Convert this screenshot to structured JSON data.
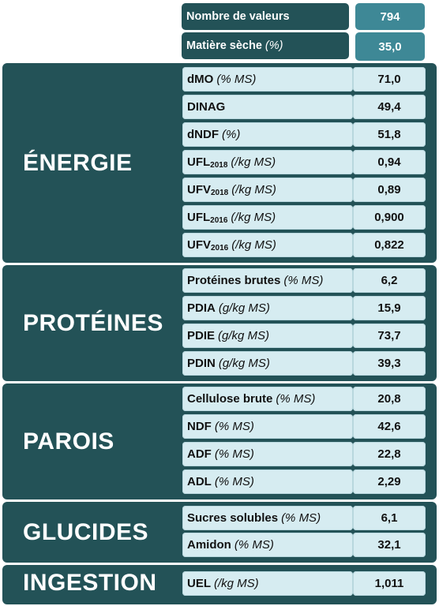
{
  "header": {
    "count_label": "Nombre de valeurs",
    "count_value": "794",
    "dm_label": "Matière sèche",
    "dm_unit": "(%)",
    "dm_value": "35,0"
  },
  "sections": [
    {
      "title": "ÉNERGIE",
      "rows": [
        {
          "label": "dMO",
          "sub": "",
          "unit": "(% MS)",
          "value": "71,0"
        },
        {
          "label": "DINAG",
          "sub": "",
          "unit": "",
          "value": "49,4"
        },
        {
          "label": "dNDF",
          "sub": "",
          "unit": "(%)",
          "value": "51,8"
        },
        {
          "label": "UFL",
          "sub": "2018",
          "unit": "(/kg MS)",
          "value": "0,94"
        },
        {
          "label": "UFV",
          "sub": "2018",
          "unit": " (/kg MS)",
          "value": "0,89"
        },
        {
          "label": "UFL",
          "sub": "2016",
          "unit": "(/kg MS)",
          "value": "0,900"
        },
        {
          "label": "UFV",
          "sub": "2016",
          "unit": "(/kg MS)",
          "value": "0,822"
        }
      ]
    },
    {
      "title": "PROTÉINES",
      "rows": [
        {
          "label": "Protéines brutes",
          "sub": "",
          "unit": "(% MS)",
          "value": "6,2"
        },
        {
          "label": "PDIA",
          "sub": "",
          "unit": "(g/kg MS)",
          "value": "15,9"
        },
        {
          "label": "PDIE",
          "sub": "",
          "unit": "(g/kg MS)",
          "value": "73,7"
        },
        {
          "label": "PDIN",
          "sub": "",
          "unit": "(g/kg MS)",
          "value": "39,3"
        }
      ]
    },
    {
      "title": "PAROIS",
      "rows": [
        {
          "label": "Cellulose brute",
          "sub": "",
          "unit": "(% MS)",
          "value": "20,8"
        },
        {
          "label": "NDF",
          "sub": "",
          "unit": "(% MS)",
          "value": "42,6"
        },
        {
          "label": "ADF",
          "sub": "",
          "unit": "(% MS)",
          "value": "22,8"
        },
        {
          "label": "ADL",
          "sub": "",
          "unit": "(% MS)",
          "value": "2,29"
        }
      ]
    },
    {
      "title": "GLUCIDES",
      "rows": [
        {
          "label": "Sucres solubles",
          "sub": "",
          "unit": "(% MS)",
          "value": "6,1"
        },
        {
          "label": "Amidon",
          "sub": "",
          "unit": "(% MS)",
          "value": "32,1"
        }
      ]
    },
    {
      "title": "INGESTION",
      "rows": [
        {
          "label": "UEL",
          "sub": "",
          "unit": "(/kg MS)",
          "value": "1,011"
        }
      ]
    }
  ],
  "colors": {
    "section_bg": "#235257",
    "header_value_bg": "#3e8896",
    "cell_bg": "#d6ecf1"
  }
}
